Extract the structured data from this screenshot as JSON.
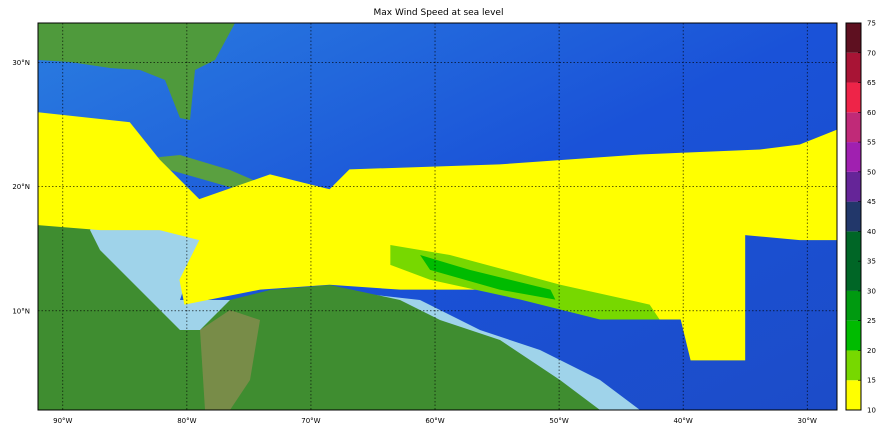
{
  "title": "Max Wind Speed at sea level",
  "map": {
    "lon_range": [
      -92.0,
      -27.6
    ],
    "lat_range": [
      2.0,
      33.2
    ],
    "lon_ticks": [
      -90,
      -80,
      -70,
      -60,
      -50,
      -40,
      -30
    ],
    "lon_tick_labels": [
      "90°W",
      "80°W",
      "70°W",
      "60°W",
      "50°W",
      "40°W",
      "30°W"
    ],
    "lat_ticks": [
      30,
      20,
      10
    ],
    "lat_tick_labels": [
      "30°N",
      "20°N",
      "10°N"
    ],
    "grid": true,
    "basemap": "shaded relief / bathymetry"
  },
  "colorbar": {
    "ticks": [
      "10",
      "15",
      "20",
      "25",
      "30",
      "35",
      "40",
      "45",
      "50",
      "55",
      "60",
      "65",
      "70",
      "75"
    ],
    "bins": [
      {
        "from": 10,
        "to": 15,
        "color": "#ffff00"
      },
      {
        "from": 15,
        "to": 20,
        "color": "#77d800"
      },
      {
        "from": 20,
        "to": 25,
        "color": "#00bb00"
      },
      {
        "from": 25,
        "to": 30,
        "color": "#009a10"
      },
      {
        "from": 30,
        "to": 40,
        "color": "#006626"
      },
      {
        "from": 40,
        "to": 45,
        "color": "#22376a"
      },
      {
        "from": 45,
        "to": 50,
        "color": "#652598"
      },
      {
        "from": 50,
        "to": 55,
        "color": "#a020b0"
      },
      {
        "from": 55,
        "to": 60,
        "color": "#c02a78"
      },
      {
        "from": 60,
        "to": 65,
        "color": "#ee2448"
      },
      {
        "from": 65,
        "to": 70,
        "color": "#a81435"
      },
      {
        "from": 70,
        "to": 75,
        "color": "#5e1020"
      }
    ]
  },
  "wind_regions": [
    {
      "level": "10-15",
      "color": "#ffff00",
      "polygon": [
        [
          -92.0,
          26.0
        ],
        [
          -84.6,
          25.2
        ],
        [
          -82.2,
          22.2
        ],
        [
          -79.0,
          19.0
        ],
        [
          -73.3,
          21.0
        ],
        [
          -68.5,
          19.8
        ],
        [
          -66.9,
          21.4
        ],
        [
          -54.8,
          21.8
        ],
        [
          -43.5,
          22.6
        ],
        [
          -33.8,
          23.0
        ],
        [
          -30.6,
          23.4
        ],
        [
          -27.6,
          24.6
        ],
        [
          -27.6,
          15.7
        ],
        [
          -30.6,
          15.7
        ],
        [
          -35.0,
          16.1
        ],
        [
          -35.0,
          6.0
        ],
        [
          -39.4,
          6.0
        ],
        [
          -40.2,
          9.3
        ],
        [
          -43.5,
          9.3
        ],
        [
          -49.9,
          10.5
        ],
        [
          -56.4,
          11.7
        ],
        [
          -62.8,
          11.7
        ],
        [
          -68.5,
          12.1
        ],
        [
          -74.1,
          11.7
        ],
        [
          -80.2,
          10.5
        ],
        [
          -80.6,
          12.5
        ],
        [
          -79.0,
          15.7
        ],
        [
          -82.2,
          16.5
        ],
        [
          -87.0,
          16.5
        ],
        [
          -92.0,
          16.9
        ]
      ]
    },
    {
      "level": "15-20",
      "color": "#77d800",
      "polygon": [
        [
          -63.6,
          15.3
        ],
        [
          -58.8,
          14.5
        ],
        [
          -49.9,
          12.1
        ],
        [
          -42.7,
          10.5
        ],
        [
          -41.9,
          9.3
        ],
        [
          -46.7,
          9.3
        ],
        [
          -53.1,
          10.9
        ],
        [
          -60.4,
          12.5
        ],
        [
          -63.6,
          13.7
        ]
      ]
    },
    {
      "level": "20-25",
      "color": "#00bb00",
      "polygon": [
        [
          -61.2,
          14.5
        ],
        [
          -57.2,
          13.3
        ],
        [
          -50.7,
          11.7
        ],
        [
          -50.3,
          10.9
        ],
        [
          -54.8,
          11.7
        ],
        [
          -60.4,
          13.3
        ]
      ]
    }
  ]
}
